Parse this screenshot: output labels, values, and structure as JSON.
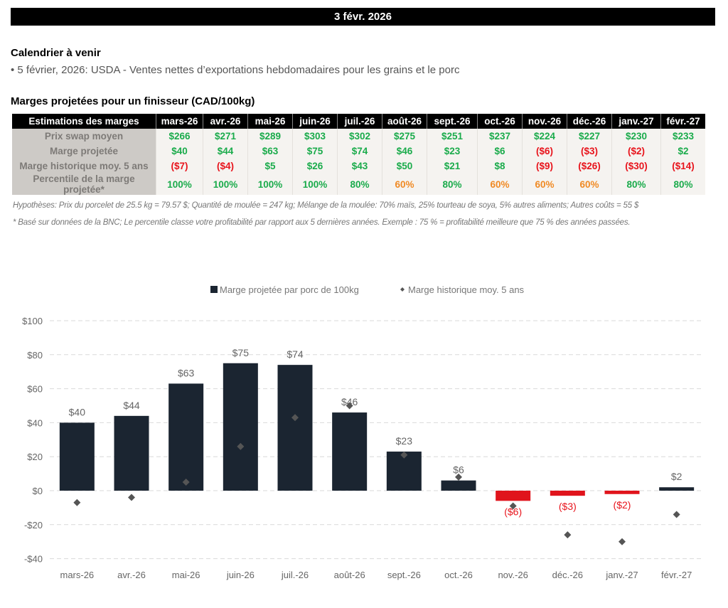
{
  "header": {
    "date": "3 févr. 2026"
  },
  "calendar": {
    "title": "Calendrier à venir",
    "items": [
      "• 5 février, 2026: USDA - Ventes nettes d’exportations hebdomadaires pour les grains et le porc"
    ]
  },
  "margins_table": {
    "title": "Marges projetées pour un finisseur (CAD/100kg)",
    "header_label": "Estimations des marges",
    "months": [
      "mars-26",
      "avr.-26",
      "mai-26",
      "juin-26",
      "juil.-26",
      "août-26",
      "sept.-26",
      "oct.-26",
      "nov.-26",
      "déc.-26",
      "janv.-27",
      "févr.-27"
    ],
    "rows": [
      {
        "label": "Prix swap moyen",
        "values": [
          "$266",
          "$271",
          "$289",
          "$303",
          "$302",
          "$275",
          "$251",
          "$237",
          "$224",
          "$227",
          "$230",
          "$233"
        ],
        "colors": [
          "green",
          "green",
          "green",
          "green",
          "green",
          "green",
          "green",
          "green",
          "green",
          "green",
          "green",
          "green"
        ]
      },
      {
        "label": "Marge projetée",
        "values": [
          "$40",
          "$44",
          "$63",
          "$75",
          "$74",
          "$46",
          "$23",
          "$6",
          "($6)",
          "($3)",
          "($2)",
          "$2"
        ],
        "colors": [
          "green",
          "green",
          "green",
          "green",
          "green",
          "green",
          "green",
          "green",
          "red",
          "red",
          "red",
          "green"
        ]
      },
      {
        "label": "Marge historique moy. 5 ans",
        "values": [
          "($7)",
          "($4)",
          "$5",
          "$26",
          "$43",
          "$50",
          "$21",
          "$8",
          "($9)",
          "($26)",
          "($30)",
          "($14)"
        ],
        "colors": [
          "red",
          "red",
          "green",
          "green",
          "green",
          "green",
          "green",
          "green",
          "red",
          "red",
          "red",
          "red"
        ]
      },
      {
        "label": "Percentile de la marge projetée*",
        "values": [
          "100%",
          "100%",
          "100%",
          "100%",
          "80%",
          "60%",
          "80%",
          "60%",
          "60%",
          "60%",
          "80%",
          "80%"
        ],
        "colors": [
          "green",
          "green",
          "green",
          "green",
          "green",
          "orange",
          "green",
          "orange",
          "orange",
          "orange",
          "green",
          "green"
        ]
      }
    ],
    "notes": [
      "Hypothèses: Prix du porcelet de 25.5 kg = 79.57 $; Quantité de moulée = 247 kg; Mélange de la moulée: 70% maïs, 25% tourteau de soya, 5% autres aliments; Autres coûts = 55 $",
      "* Basé sur données de la BNC; Le percentile classe votre profitabilité par rapport aux 5 dernières années. Exemple : 75 % = profitabilité meilleure que 75 % des années passées."
    ]
  },
  "colors": {
    "bar_positive": "#1b2531",
    "bar_negative": "#e0141c",
    "marker": "#555555",
    "negative_label": "#e8141c",
    "grid": "#d9d9d9"
  },
  "chart_data": {
    "type": "bar",
    "title": "",
    "xlabel": "",
    "ylabel": "",
    "categories": [
      "mars-26",
      "avr.-26",
      "mai-26",
      "juin-26",
      "juil.-26",
      "août-26",
      "sept.-26",
      "oct.-26",
      "nov.-26",
      "déc.-26",
      "janv.-27",
      "févr.-27"
    ],
    "series": [
      {
        "name": "Marge projetée par porc de 100kg",
        "kind": "bar",
        "values": [
          40,
          44,
          63,
          75,
          74,
          46,
          23,
          6,
          -6,
          -3,
          -2,
          2
        ],
        "labels": [
          "$40",
          "$44",
          "$63",
          "$75",
          "$74",
          "$46",
          "$23",
          "$6",
          "($6)",
          "($3)",
          "($2)",
          "$2"
        ]
      },
      {
        "name": "Marge historique moy. 5 ans",
        "kind": "scatter-diamond",
        "values": [
          -7,
          -4,
          5,
          26,
          43,
          50,
          21,
          8,
          -9,
          -26,
          -30,
          -14
        ]
      }
    ],
    "ylim": [
      -40,
      100
    ],
    "yticks": [
      100,
      80,
      60,
      40,
      20,
      0,
      -20,
      -40
    ],
    "ytick_labels": [
      "$100",
      "$80",
      "$60",
      "$40",
      "$20",
      "$0",
      "-$20",
      "-$40"
    ],
    "grid": true,
    "legend_position": "top-center"
  }
}
